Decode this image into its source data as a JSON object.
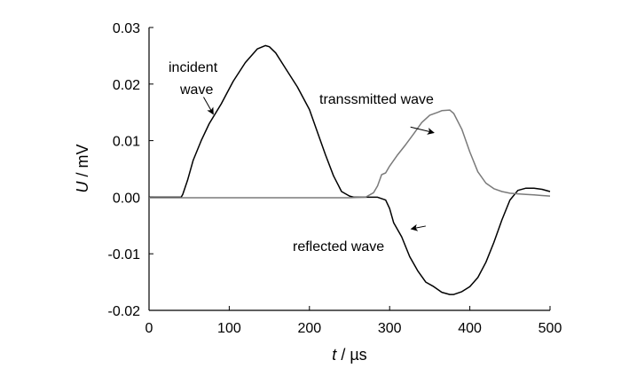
{
  "chart_data": {
    "type": "line",
    "xlabel_var": "t",
    "xlabel_unit": " / µs",
    "ylabel_var": "U",
    "ylabel_unit": " / mV",
    "xlim": [
      0,
      500
    ],
    "ylim": [
      -0.02,
      0.03
    ],
    "xticks": [
      "0",
      "100",
      "200",
      "300",
      "400",
      "500"
    ],
    "xtick_values": [
      0,
      100,
      200,
      300,
      400,
      500
    ],
    "yticks": [
      "-0.02",
      "-0.01",
      "0.00",
      "0.01",
      "0.02",
      "0.03"
    ],
    "ytick_values": [
      -0.02,
      -0.01,
      0.0,
      0.01,
      0.02,
      0.03
    ],
    "grid": false,
    "legend": "none",
    "series": [
      {
        "color": "#000000",
        "x": [
          0,
          20,
          40,
          42,
          48,
          55,
          65,
          75,
          90,
          105,
          120,
          135,
          145,
          150,
          158,
          170,
          185,
          200,
          210,
          220,
          230,
          240,
          250,
          255
        ],
        "y": [
          0.0,
          0.0,
          0.0,
          0.0005,
          0.003,
          0.0065,
          0.01,
          0.013,
          0.0165,
          0.0205,
          0.0238,
          0.0262,
          0.0268,
          0.0266,
          0.0255,
          0.0228,
          0.0195,
          0.0155,
          0.0115,
          0.0075,
          0.0038,
          0.001,
          0.0002,
          0.0
        ]
      },
      {
        "color": "#000000",
        "x": [
          255,
          270,
          285,
          295,
          300,
          305,
          315,
          325,
          335,
          345,
          355,
          365,
          375,
          380,
          390,
          400,
          410,
          420,
          430,
          440,
          450,
          460,
          470,
          480,
          490,
          500
        ],
        "y": [
          0.0,
          0.0,
          0.0,
          -0.0005,
          -0.002,
          -0.0045,
          -0.007,
          -0.0105,
          -0.013,
          -0.015,
          -0.0158,
          -0.0168,
          -0.0172,
          -0.0172,
          -0.0167,
          -0.0158,
          -0.0142,
          -0.0115,
          -0.008,
          -0.004,
          -0.0005,
          0.0012,
          0.0016,
          0.0016,
          0.0014,
          0.001
        ]
      },
      {
        "color": "#7a7a7a",
        "x": [
          0,
          50,
          100,
          150,
          200,
          250,
          270,
          280,
          285,
          290,
          295,
          300,
          310,
          320,
          330,
          340,
          350,
          360,
          365,
          375,
          380,
          390,
          400,
          410,
          420,
          430,
          440,
          450,
          460,
          470,
          480,
          490,
          500
        ],
        "y": [
          -0.0001,
          -0.0001,
          -0.0001,
          -0.0001,
          -0.0001,
          -0.0001,
          0.0,
          0.0008,
          0.002,
          0.004,
          0.0043,
          0.0055,
          0.0075,
          0.0093,
          0.0112,
          0.0132,
          0.0145,
          0.015,
          0.0153,
          0.0154,
          0.0148,
          0.012,
          0.008,
          0.0045,
          0.0025,
          0.0015,
          0.001,
          0.0007,
          0.0006,
          0.0005,
          0.0004,
          0.0003,
          0.0002
        ]
      }
    ],
    "annotations": [
      {
        "lines": [
          "incident",
          "wave"
        ],
        "arrow_from": [
          68,
          0.0177
        ],
        "arrow_to": [
          80,
          0.0147
        ]
      },
      {
        "lines": [
          "transsmitted wave"
        ],
        "arrow_from": [
          326,
          0.0124
        ],
        "arrow_to": [
          355,
          0.0114
        ]
      },
      {
        "lines": [
          "reflected wave"
        ],
        "arrow_from": [
          345,
          -0.0051
        ],
        "arrow_to": [
          327,
          -0.0056
        ]
      }
    ]
  }
}
